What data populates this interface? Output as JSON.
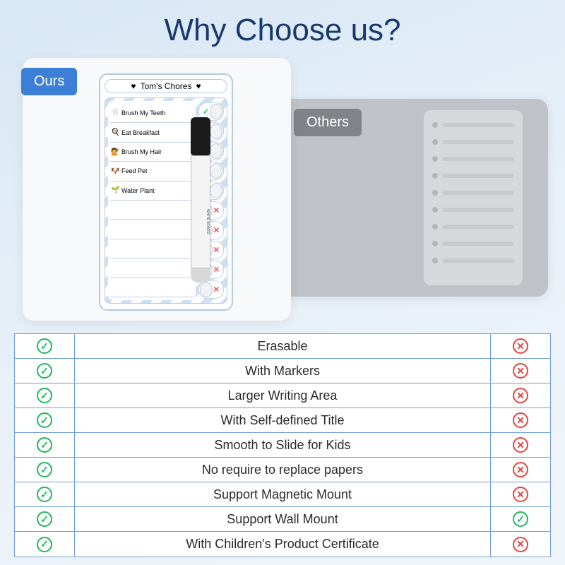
{
  "title": "Why Choose us?",
  "colors": {
    "title": "#1a3a6e",
    "ours_tag_bg": "#3b7fd6",
    "others_tag_bg": "#808488",
    "yes": "#1fb85c",
    "no": "#e8423f",
    "table_border": "#6f9dd6",
    "bg_gradient_from": "#d8e8f5",
    "bg_gradient_to": "#f0f5fa"
  },
  "cards": {
    "ours_label": "Ours",
    "others_label": "Others"
  },
  "board": {
    "title": "Tom's Chores",
    "chores": [
      {
        "icon": "🦷",
        "label": "Brush My Teeth",
        "state": "on"
      },
      {
        "icon": "🍳",
        "label": "Eat Breakfast",
        "state": "on"
      },
      {
        "icon": "💇",
        "label": "Brush My Hair",
        "state": "on"
      },
      {
        "icon": "🐶",
        "label": "Feed Pet",
        "state": "on"
      },
      {
        "icon": "🌱",
        "label": "Water Plant",
        "state": "on"
      },
      {
        "icon": "",
        "label": "",
        "state": "off"
      },
      {
        "icon": "",
        "label": "",
        "state": "off"
      },
      {
        "icon": "",
        "label": "",
        "state": "off"
      },
      {
        "icon": "",
        "label": "",
        "state": "off"
      },
      {
        "icon": "",
        "label": "",
        "state": "off"
      }
    ],
    "marker_label": "WHITE BOARD"
  },
  "features": [
    {
      "name": "Erasable",
      "ours": true,
      "others": false
    },
    {
      "name": "With Markers",
      "ours": true,
      "others": false
    },
    {
      "name": "Larger Writing Area",
      "ours": true,
      "others": false
    },
    {
      "name": "With Self-defined Title",
      "ours": true,
      "others": false
    },
    {
      "name": "Smooth to Slide for Kids",
      "ours": true,
      "others": false
    },
    {
      "name": "No require to replace papers",
      "ours": true,
      "others": false
    },
    {
      "name": "Support Magnetic Mount",
      "ours": true,
      "others": false
    },
    {
      "name": "Support Wall Mount",
      "ours": true,
      "others": true
    },
    {
      "name": "With Children's Product Certificate",
      "ours": true,
      "others": false
    }
  ],
  "marks": {
    "yes": "✓",
    "no": "✕"
  }
}
